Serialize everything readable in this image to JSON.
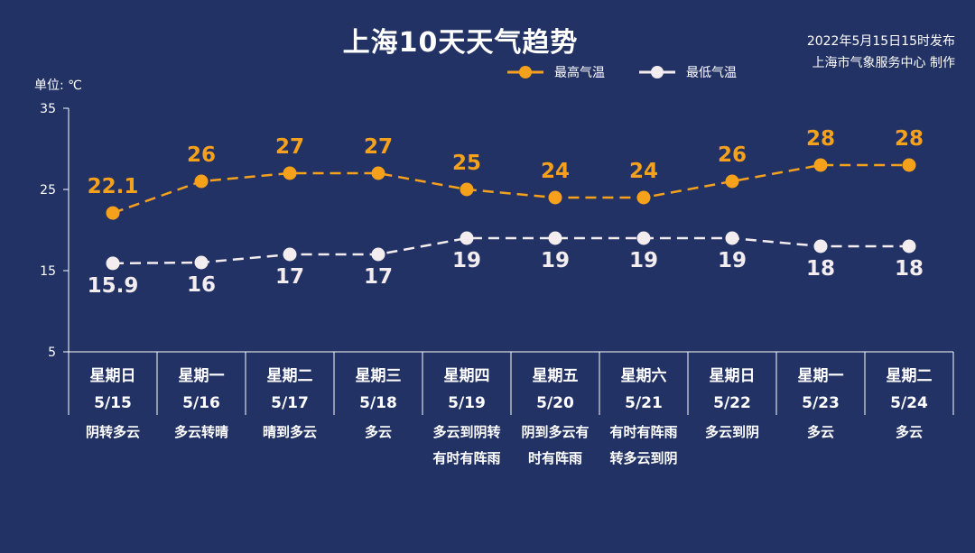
{
  "title": "上海10天天气趋势",
  "publish": {
    "line1": "2022年5月15日15时发布",
    "line2": "上海市气象服务中心 制作"
  },
  "unit": "单位: ℃",
  "colors": {
    "background": "#233264",
    "high": "#F5A11C",
    "low": "#F3EDEF",
    "axis": "#ffffff"
  },
  "chart_data": {
    "type": "line",
    "y_ticks": [
      5,
      15,
      25,
      35
    ],
    "ylim": [
      5,
      35
    ],
    "legend_position": "top-right",
    "grid": false,
    "series": [
      {
        "name": "最高气温",
        "values": [
          22.1,
          26,
          27,
          27,
          25,
          24,
          24,
          26,
          28,
          28
        ],
        "labels": [
          "22.1",
          "26",
          "27",
          "27",
          "25",
          "24",
          "24",
          "26",
          "28",
          "28"
        ]
      },
      {
        "name": "最低气温",
        "values": [
          15.9,
          16,
          17,
          17,
          19,
          19,
          19,
          19,
          18,
          18
        ],
        "labels": [
          "15.9",
          "16",
          "17",
          "17",
          "19",
          "19",
          "19",
          "19",
          "18",
          "18"
        ]
      }
    ],
    "days": [
      {
        "weekday": "星期日",
        "date": "5/15",
        "weather": [
          "阴转多云"
        ]
      },
      {
        "weekday": "星期一",
        "date": "5/16",
        "weather": [
          "多云转晴"
        ]
      },
      {
        "weekday": "星期二",
        "date": "5/17",
        "weather": [
          "晴到多云"
        ]
      },
      {
        "weekday": "星期三",
        "date": "5/18",
        "weather": [
          "多云"
        ]
      },
      {
        "weekday": "星期四",
        "date": "5/19",
        "weather": [
          "多云到阴转",
          "有时有阵雨"
        ]
      },
      {
        "weekday": "星期五",
        "date": "5/20",
        "weather": [
          "阴到多云有",
          "时有阵雨"
        ]
      },
      {
        "weekday": "星期六",
        "date": "5/21",
        "weather": [
          "有时有阵雨",
          "转多云到阴"
        ]
      },
      {
        "weekday": "星期日",
        "date": "5/22",
        "weather": [
          "多云到阴"
        ]
      },
      {
        "weekday": "星期一",
        "date": "5/23",
        "weather": [
          "多云"
        ]
      },
      {
        "weekday": "星期二",
        "date": "5/24",
        "weather": [
          "多云"
        ]
      }
    ]
  }
}
